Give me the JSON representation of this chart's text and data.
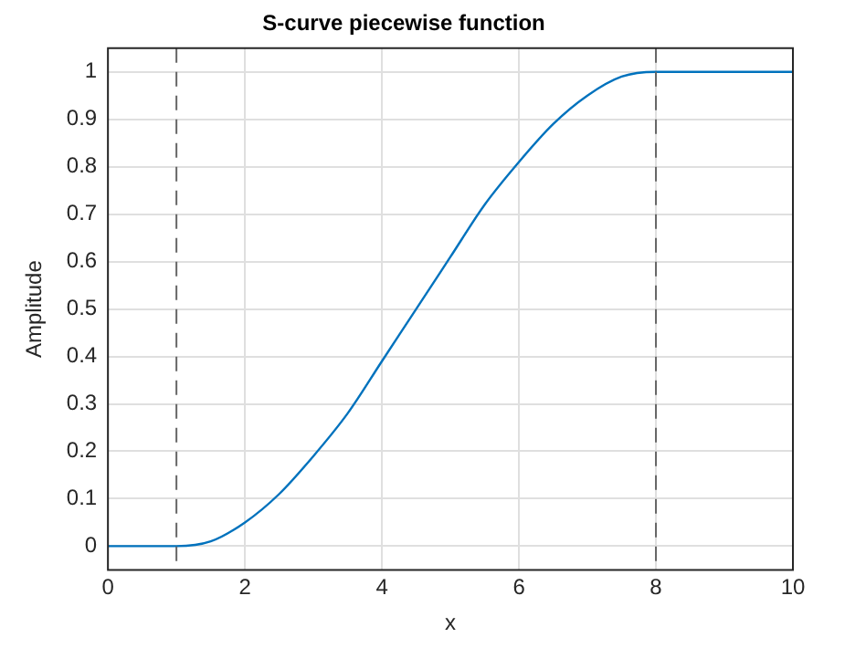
{
  "chart_data": {
    "type": "line",
    "title": "S-curve piecewise function",
    "xlabel": "x",
    "ylabel": "Amplitude",
    "x": [
      0,
      1,
      1.5,
      2,
      2.5,
      3,
      3.5,
      4,
      4.5,
      5,
      5.5,
      6,
      6.5,
      7,
      7.5,
      8,
      10
    ],
    "series": [
      {
        "color": "#0072bd",
        "values": [
          0,
          0,
          0.01,
          0.05,
          0.11,
          0.19,
          0.28,
          0.39,
          0.5,
          0.61,
          0.72,
          0.81,
          0.89,
          0.95,
          0.99,
          1,
          1
        ]
      }
    ],
    "xlim": [
      0,
      10
    ],
    "xticks": [
      0,
      2,
      4,
      6,
      8,
      10
    ],
    "ylim": [
      -0.05,
      1.05
    ],
    "yticks": [
      0,
      0.1,
      0.2,
      0.3,
      0.4,
      0.5,
      0.6,
      0.7,
      0.8,
      0.9,
      1
    ],
    "ref_lines": [
      {
        "axis": "x",
        "value": 1,
        "color": "#666666",
        "line_style": "dashed"
      },
      {
        "axis": "x",
        "value": 8,
        "color": "#666666",
        "line_style": "dashed"
      }
    ],
    "grid": true,
    "legend": false,
    "marker": "none",
    "line_style": "solid"
  }
}
